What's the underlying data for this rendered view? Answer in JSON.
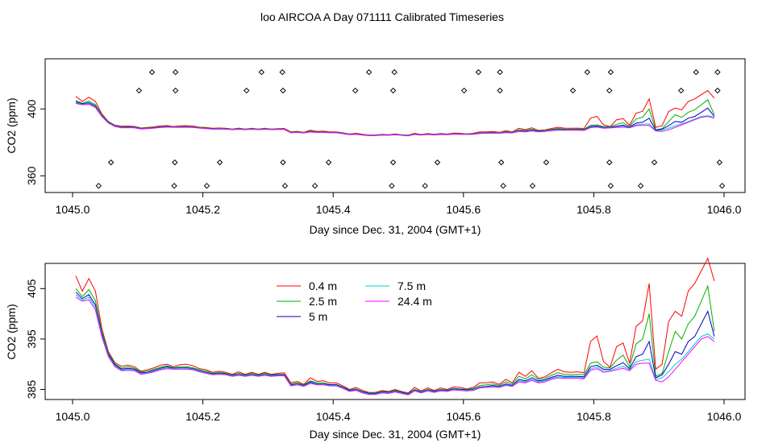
{
  "title": "loo AIRCOA A  Day 071111  Calibrated Timeseries",
  "chart_data": [
    {
      "type": "scatter",
      "xlabel": "Day since Dec. 31, 2004 (GMT+1)",
      "ylabel": "CO2 (ppm)",
      "xlim": [
        1045.0,
        1046.0
      ],
      "ylim": [
        350,
        430
      ],
      "xticks": [
        "1045.0",
        "1045.2",
        "1045.4",
        "1045.6",
        "1045.8",
        "1046.0"
      ],
      "yticks": [
        "360",
        "400"
      ],
      "ytick_values": [
        360,
        400
      ],
      "series": [
        {
          "values_x": [
            1045.0,
            1045.05,
            1045.1,
            1045.15,
            1045.2,
            1045.25,
            1045.3,
            1045.35,
            1045.4,
            1045.45,
            1045.5,
            1045.55,
            1045.6,
            1045.65,
            1045.7,
            1045.75,
            1045.8,
            1045.85,
            1045.9,
            1045.95,
            1045.99
          ],
          "values_y": [
            402,
            394,
            389,
            389,
            388,
            388,
            388,
            386.5,
            385.5,
            384.5,
            384.5,
            384.5,
            384.5,
            385.5,
            386,
            387,
            389,
            390,
            388,
            393,
            396
          ]
        }
      ],
      "markers": {
        "x": [
          1045.122,
          1045.158,
          1045.29,
          1045.322,
          1045.455,
          1045.494,
          1045.623,
          1045.656,
          1045.79,
          1045.826,
          1045.957,
          1045.99,
          1045.102,
          1045.158,
          1045.267,
          1045.323,
          1045.434,
          1045.492,
          1045.601,
          1045.656,
          1045.768,
          1045.824,
          1045.934,
          1045.99,
          1045.059,
          1045.157,
          1045.226,
          1045.323,
          1045.393,
          1045.492,
          1045.56,
          1045.658,
          1045.727,
          1045.824,
          1045.893,
          1045.993,
          1045.04,
          1045.156,
          1045.206,
          1045.326,
          1045.372,
          1045.49,
          1045.541,
          1045.661,
          1045.706,
          1045.826,
          1045.872,
          1045.997
        ],
        "y": [
          422,
          422,
          422,
          422,
          422,
          422,
          422,
          422,
          422,
          422,
          422,
          422,
          411,
          411,
          411,
          411,
          411,
          411,
          411,
          411,
          411,
          411,
          411,
          411,
          368,
          368,
          368,
          368,
          368,
          368,
          368,
          368,
          368,
          368,
          368,
          368,
          354,
          354,
          354,
          354,
          354,
          354,
          354,
          354,
          354,
          354,
          354,
          354
        ]
      }
    },
    {
      "type": "line",
      "xlabel": "Day since Dec. 31, 2004 (GMT+1)",
      "ylabel": "CO2 (ppm)",
      "xlim": [
        1045.0,
        1046.0
      ],
      "ylim": [
        383,
        410
      ],
      "xticks": [
        "1045.0",
        "1045.2",
        "1045.4",
        "1045.6",
        "1045.8",
        "1046.0"
      ],
      "yticks": [
        "385",
        "395",
        "405"
      ],
      "ytick_values": [
        385,
        395,
        405
      ],
      "x": [
        1045.005,
        1045.015,
        1045.025,
        1045.035,
        1045.045,
        1045.055,
        1045.065,
        1045.075,
        1045.085,
        1045.095,
        1045.105,
        1045.115,
        1045.125,
        1045.135,
        1045.145,
        1045.155,
        1045.165,
        1045.175,
        1045.185,
        1045.195,
        1045.205,
        1045.215,
        1045.225,
        1045.235,
        1045.245,
        1045.255,
        1045.265,
        1045.275,
        1045.285,
        1045.295,
        1045.305,
        1045.315,
        1045.325,
        1045.335,
        1045.345,
        1045.355,
        1045.365,
        1045.375,
        1045.385,
        1045.395,
        1045.405,
        1045.415,
        1045.425,
        1045.435,
        1045.445,
        1045.455,
        1045.465,
        1045.475,
        1045.485,
        1045.495,
        1045.505,
        1045.515,
        1045.525,
        1045.535,
        1045.545,
        1045.555,
        1045.565,
        1045.575,
        1045.585,
        1045.595,
        1045.605,
        1045.615,
        1045.625,
        1045.635,
        1045.645,
        1045.655,
        1045.665,
        1045.675,
        1045.685,
        1045.695,
        1045.705,
        1045.715,
        1045.725,
        1045.735,
        1045.745,
        1045.755,
        1045.765,
        1045.775,
        1045.785,
        1045.795,
        1045.805,
        1045.815,
        1045.825,
        1045.835,
        1045.845,
        1045.855,
        1045.865,
        1045.875,
        1045.885,
        1045.895,
        1045.905,
        1045.915,
        1045.925,
        1045.935,
        1045.945,
        1045.955,
        1045.965,
        1045.975,
        1045.985
      ],
      "series": [
        {
          "name": "0.4 m",
          "color": "#ff0000",
          "values": [
            407.5,
            404.5,
            407,
            404.5,
            397,
            392.5,
            390.3,
            389.6,
            389.8,
            389.5,
            388.6,
            388.9,
            389.3,
            389.8,
            390.0,
            389.5,
            389.9,
            390.0,
            389.7,
            389.1,
            388.9,
            388.4,
            388.6,
            388.4,
            388.0,
            388.5,
            388.0,
            388.4,
            388.0,
            388.4,
            388.0,
            388.2,
            388.3,
            386.3,
            386.6,
            386.0,
            387.3,
            386.6,
            386.7,
            386.3,
            386.3,
            385.7,
            385.0,
            385.4,
            384.8,
            384.4,
            384.4,
            384.8,
            384.6,
            385.0,
            384.6,
            384.3,
            385.4,
            384.7,
            385.3,
            384.8,
            385.3,
            385.0,
            385.5,
            385.4,
            385.1,
            385.4,
            386.3,
            386.3,
            386.5,
            386.0,
            387.0,
            386.3,
            388.4,
            387.6,
            388.7,
            387.2,
            387.5,
            388.3,
            389.0,
            388.5,
            388.4,
            388.5,
            388.3,
            394.5,
            395.6,
            390.5,
            389.4,
            393.5,
            394.2,
            390.2,
            397.5,
            398.6,
            406,
            389,
            390,
            398.5,
            400.5,
            399.5,
            404.5,
            406.0,
            408.5,
            411,
            406.5
          ]
        },
        {
          "name": "2.5 m",
          "color": "#00b000",
          "values": [
            405.0,
            403.4,
            404.8,
            402.6,
            396.5,
            392.2,
            390.1,
            389.2,
            389.5,
            389.2,
            388.5,
            388.6,
            389.0,
            389.4,
            389.7,
            389.3,
            389.5,
            389.5,
            389.3,
            388.9,
            388.6,
            388.2,
            388.4,
            388.2,
            387.9,
            388.2,
            387.9,
            388.2,
            387.9,
            388.2,
            387.9,
            388.0,
            388.0,
            386.1,
            386.3,
            385.9,
            386.7,
            386.3,
            386.3,
            386.0,
            386.0,
            385.5,
            384.9,
            385.1,
            384.6,
            384.3,
            384.3,
            384.6,
            384.5,
            384.8,
            384.5,
            384.2,
            385.0,
            384.6,
            385.0,
            384.7,
            385.0,
            384.9,
            385.2,
            385.1,
            385.0,
            385.2,
            385.8,
            385.9,
            386.1,
            385.8,
            386.5,
            386.0,
            387.6,
            387.1,
            387.9,
            387.0,
            387.2,
            387.8,
            388.3,
            388.0,
            387.9,
            388.0,
            387.9,
            390.2,
            390.5,
            389.4,
            389.3,
            390.8,
            391.8,
            389.5,
            394.0,
            395.0,
            400.0,
            387.6,
            388.2,
            392.5,
            396.5,
            395.0,
            398.0,
            399.5,
            402.5,
            405.5,
            396.5
          ]
        },
        {
          "name": "5 m",
          "color": "#0000cc",
          "values": [
            404.3,
            403.0,
            403.8,
            401.8,
            396.0,
            391.9,
            389.9,
            389.0,
            389.2,
            389.0,
            388.3,
            388.4,
            388.8,
            389.2,
            389.5,
            389.2,
            389.3,
            389.3,
            389.1,
            388.7,
            388.4,
            388.1,
            388.2,
            388.1,
            387.8,
            388.0,
            387.8,
            388.0,
            387.8,
            388.0,
            387.8,
            387.9,
            387.9,
            385.9,
            386.1,
            385.8,
            386.5,
            386.1,
            386.1,
            385.9,
            385.9,
            385.4,
            384.8,
            385.0,
            384.5,
            384.2,
            384.2,
            384.5,
            384.4,
            384.7,
            384.4,
            384.1,
            384.9,
            384.5,
            384.9,
            384.6,
            384.9,
            384.8,
            385.1,
            385.0,
            384.9,
            385.0,
            385.5,
            385.6,
            385.8,
            385.6,
            386.1,
            385.8,
            387.0,
            386.7,
            387.3,
            386.7,
            386.9,
            387.4,
            387.8,
            387.6,
            387.6,
            387.6,
            387.5,
            389.5,
            389.8,
            389.0,
            389.0,
            389.7,
            390.3,
            389.1,
            391.5,
            392.0,
            394.5,
            387.3,
            387.9,
            390.0,
            392.5,
            392.0,
            394.5,
            395.5,
            398.0,
            400.5,
            395.5
          ]
        },
        {
          "name": "7.5 m",
          "color": "#00cccc",
          "values": [
            403.8,
            402.7,
            403.3,
            401.3,
            395.7,
            391.7,
            389.7,
            388.8,
            389.0,
            388.8,
            388.1,
            388.3,
            388.6,
            389.0,
            389.3,
            389.1,
            389.2,
            389.2,
            389.0,
            388.6,
            388.3,
            388.0,
            388.1,
            388.0,
            387.7,
            387.9,
            387.7,
            387.9,
            387.7,
            387.9,
            387.7,
            387.8,
            387.8,
            385.8,
            386.0,
            385.7,
            386.3,
            386.0,
            386.0,
            385.8,
            385.8,
            385.3,
            384.7,
            384.9,
            384.4,
            384.1,
            384.1,
            384.4,
            384.3,
            384.6,
            384.3,
            384.0,
            384.8,
            384.4,
            384.8,
            384.5,
            384.8,
            384.7,
            385.0,
            384.9,
            384.8,
            384.9,
            385.4,
            385.5,
            385.6,
            385.5,
            385.9,
            385.7,
            386.7,
            386.5,
            387.0,
            386.5,
            386.7,
            387.2,
            387.5,
            387.4,
            387.4,
            387.4,
            387.3,
            389.1,
            389.4,
            388.7,
            388.8,
            389.2,
            389.6,
            388.9,
            390.5,
            390.8,
            391.0,
            387.0,
            387.3,
            388.5,
            390.0,
            391.0,
            392.5,
            394.0,
            395.5,
            396.0,
            395.0
          ]
        },
        {
          "name": "24.4 m",
          "color": "#ff00ff",
          "values": [
            403.3,
            402.5,
            402.8,
            400.8,
            395.4,
            391.5,
            389.5,
            388.7,
            388.8,
            388.7,
            388.0,
            388.2,
            388.5,
            388.9,
            389.1,
            389.0,
            389.0,
            389.0,
            388.9,
            388.5,
            388.2,
            387.9,
            388.0,
            387.9,
            387.6,
            387.8,
            387.6,
            387.8,
            387.6,
            387.8,
            387.6,
            387.7,
            387.7,
            385.7,
            385.9,
            385.6,
            386.2,
            385.9,
            385.9,
            385.7,
            385.7,
            385.2,
            384.6,
            384.8,
            384.3,
            384.0,
            384.0,
            384.3,
            384.2,
            384.5,
            384.2,
            383.9,
            384.7,
            384.3,
            384.7,
            384.4,
            384.7,
            384.6,
            384.9,
            384.8,
            384.7,
            384.8,
            385.3,
            385.4,
            385.5,
            385.4,
            385.8,
            385.6,
            386.5,
            386.3,
            386.8,
            386.3,
            386.5,
            387.0,
            387.3,
            387.2,
            387.2,
            387.2,
            387.1,
            388.8,
            389.1,
            388.4,
            388.6,
            388.9,
            389.2,
            388.7,
            390.0,
            390.2,
            390.2,
            386.8,
            386.5,
            387.5,
            389.0,
            390.5,
            392.0,
            393.5,
            395.0,
            395.5,
            394.5
          ]
        }
      ],
      "legend": {
        "placement": "top-center"
      }
    }
  ]
}
